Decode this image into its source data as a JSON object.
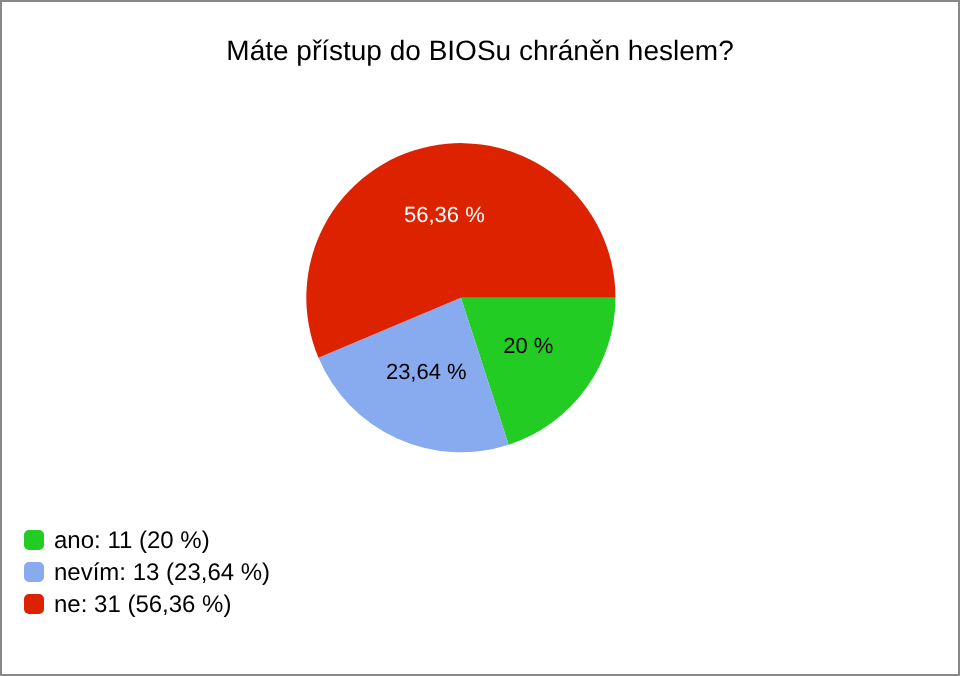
{
  "chart_data": {
    "type": "pie",
    "title": "Máte přístup do BIOSu chráněn heslem?",
    "categories": [
      "ano: 11 (20 %)",
      "nevím: 13 (23,64 %)",
      "ne: 31 (56,36 %)"
    ],
    "values": [
      20,
      23.64,
      56.36
    ],
    "colors": [
      "#22cc22",
      "#88aaee",
      "#dd2200"
    ],
    "value_labels": [
      "20 %",
      "23,64 %",
      "56,36 %"
    ],
    "legend": "bottom left"
  }
}
